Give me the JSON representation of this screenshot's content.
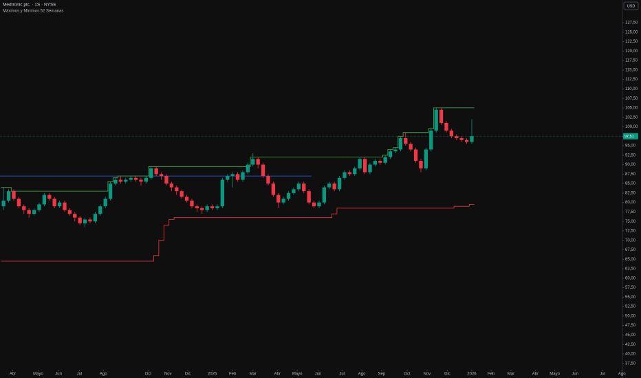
{
  "chart_data": {
    "type": "candlestick",
    "title": "Medtronic plc. · 1S · NYSE",
    "subtitle": "Máximos y Mínimos 52 Semanas",
    "currency": "USD",
    "up_color": "#089981",
    "down_color": "#f23645",
    "x": [
      -2,
      -1,
      0,
      1,
      2,
      3,
      4,
      5,
      6,
      7,
      8,
      9,
      10,
      11,
      12,
      13,
      14,
      15,
      16,
      17,
      18,
      19,
      20,
      21,
      22,
      23,
      24,
      25,
      26,
      27,
      28,
      29,
      30,
      31,
      32,
      33,
      34,
      35,
      36,
      37,
      38,
      39,
      40,
      41,
      42,
      43,
      44,
      45,
      46,
      47,
      48,
      49,
      50,
      51,
      52,
      53,
      54,
      55,
      56,
      57,
      58,
      59,
      60,
      61,
      62,
      63,
      64,
      65,
      66,
      67,
      68,
      69,
      70,
      71,
      72,
      73,
      74,
      75,
      76,
      77,
      78,
      79,
      80,
      81,
      82,
      83,
      84,
      85,
      86,
      87,
      88,
      89,
      90
    ],
    "open": [
      79,
      80.5,
      83,
      81,
      79,
      78,
      77,
      78,
      79.5,
      82,
      81,
      79,
      80,
      78,
      77,
      76,
      74.5,
      75.5,
      75,
      77,
      79,
      81,
      85,
      86,
      85.5,
      86,
      86.5,
      86,
      85.5,
      86.5,
      89,
      87.5,
      87,
      85,
      84,
      83,
      81.5,
      80.5,
      79,
      78.5,
      78,
      79,
      78.5,
      79,
      86,
      87,
      87.5,
      86,
      88,
      90,
      91.5,
      90,
      87,
      85,
      82,
      80,
      81,
      82.5,
      83.5,
      85,
      83,
      80,
      79,
      80,
      84,
      85,
      83.5,
      86.5,
      88,
      87.5,
      89,
      91.5,
      88,
      90,
      91,
      90.5,
      92,
      93.5,
      94,
      97,
      95.5,
      94,
      91,
      89,
      94,
      99,
      104.5,
      101,
      99,
      97.5,
      97,
      96.5,
      96
    ],
    "high": [
      84,
      83.5,
      83.5,
      81.5,
      79.5,
      78.5,
      78.5,
      80,
      82.5,
      82.5,
      81.5,
      80.5,
      80.5,
      78.5,
      77.5,
      76.5,
      76,
      76,
      77.5,
      79.5,
      81.5,
      85.5,
      86.5,
      87,
      86.5,
      87,
      87,
      86.5,
      87,
      89.5,
      89.5,
      88,
      87.5,
      85.5,
      84.5,
      83.5,
      82,
      81,
      79.5,
      79,
      79.5,
      79.5,
      79.5,
      86.5,
      87.5,
      88,
      88,
      88.5,
      90.5,
      93,
      92,
      90.5,
      87.5,
      85.5,
      82.5,
      81.5,
      83,
      84,
      85.5,
      85.5,
      83.5,
      80.5,
      80.5,
      84.5,
      85.5,
      85.5,
      87,
      88.5,
      88.5,
      89.5,
      92,
      92,
      90.5,
      91.5,
      91.5,
      92.5,
      94,
      94.5,
      97.5,
      98.5,
      96,
      94.5,
      91.5,
      94.5,
      99.5,
      105,
      105,
      101.5,
      99.5,
      98,
      97.5,
      97,
      102
    ],
    "low": [
      78,
      80,
      80.5,
      78.5,
      77,
      76,
      76.5,
      77.5,
      79,
      80.5,
      78.5,
      78.5,
      77.5,
      76.5,
      75,
      74,
      73.5,
      74.5,
      74.5,
      76.5,
      78.5,
      80.5,
      84.5,
      85,
      85,
      85.5,
      85.5,
      84.5,
      85,
      86,
      87,
      86,
      84.5,
      83,
      82,
      81,
      80,
      78.5,
      77.5,
      77,
      77.5,
      78,
      78,
      78.5,
      85.5,
      84,
      85.5,
      85.5,
      87.5,
      89.5,
      89,
      86.5,
      84.5,
      81.5,
      78.5,
      79.5,
      80.5,
      82,
      83,
      82.5,
      79.5,
      78.5,
      78.5,
      79.5,
      83.5,
      83,
      83,
      86,
      87,
      87,
      88.5,
      87.5,
      87.5,
      89.5,
      90,
      90,
      91.5,
      93,
      93.5,
      95,
      93.5,
      90.5,
      88,
      88.5,
      93.5,
      98.5,
      100.5,
      98.5,
      97,
      96.5,
      96,
      95.5,
      95.5
    ],
    "close": [
      80.5,
      83,
      81,
      79,
      78,
      77,
      78,
      79.5,
      82,
      81,
      79,
      80,
      78,
      77,
      76,
      74.5,
      75.5,
      75,
      77,
      79,
      81,
      85,
      86,
      85.5,
      86,
      86.5,
      86,
      85.5,
      86.5,
      89,
      87.5,
      87,
      85,
      84,
      83,
      81.5,
      80.5,
      79,
      78.5,
      78,
      79,
      78.5,
      79,
      86,
      87,
      87.5,
      86,
      88,
      90,
      91.5,
      90,
      87,
      85,
      82,
      80,
      81,
      82.5,
      83.5,
      85,
      83,
      80,
      79,
      80,
      84,
      85,
      83.5,
      86.5,
      88,
      87.5,
      89,
      91.5,
      88,
      90,
      91,
      90.5,
      92,
      93.5,
      94,
      97,
      95.5,
      94,
      91,
      89,
      94,
      99,
      104.5,
      101,
      99,
      97.5,
      97,
      96.5,
      96,
      97.51
    ],
    "last_label": "97,51",
    "last_color": "#089981",
    "series": [
      {
        "color": "#4caf50",
        "values": [
          84,
          84,
          83,
          83,
          83,
          83,
          83,
          83,
          83,
          83,
          83,
          83,
          83,
          83,
          83,
          83,
          83,
          83,
          83,
          83,
          83,
          85.5,
          86.5,
          87,
          87,
          87,
          87,
          87,
          87,
          89.5,
          89.5,
          89.5,
          89.5,
          89.5,
          89.5,
          89.5,
          89.5,
          89.5,
          89.5,
          89.5,
          89.5,
          89.5,
          89.5,
          89.5,
          89.5,
          89.5,
          89.5,
          89.5,
          89.5,
          92,
          92,
          92,
          92,
          92,
          92,
          92,
          92,
          92,
          92,
          92,
          92,
          92,
          92,
          92,
          92,
          92,
          92,
          92,
          92,
          92,
          92,
          92,
          92,
          92,
          92,
          92.5,
          94,
          94.5,
          97.5,
          98.5,
          98.5,
          98.5,
          98.5,
          98.5,
          99.5,
          105,
          105,
          105,
          105,
          105,
          105,
          105,
          105
        ]
      },
      {
        "color": "#f23645",
        "values": [
          64.5,
          64.5,
          64.5,
          64.5,
          64.5,
          64.5,
          64.5,
          64.5,
          64.5,
          64.5,
          64.5,
          64.5,
          64.5,
          64.5,
          64.5,
          64.5,
          64.5,
          64.5,
          64.5,
          64.5,
          64.5,
          64.5,
          64.5,
          64.5,
          64.5,
          64.5,
          64.5,
          64.5,
          64.5,
          64.5,
          66,
          70,
          74,
          75.5,
          76,
          76,
          76,
          76,
          76,
          76,
          76,
          76,
          76,
          76,
          76,
          76,
          76,
          76,
          76,
          76,
          76,
          76,
          76,
          76,
          76,
          76,
          76,
          76,
          76,
          76,
          76,
          76,
          76,
          76,
          76,
          77,
          78.5,
          78.5,
          78.5,
          78.5,
          78.5,
          78.5,
          78.5,
          78.5,
          78.5,
          78.5,
          78.5,
          78.5,
          78.5,
          78.5,
          78.5,
          78.5,
          78.5,
          78.5,
          78.5,
          78.5,
          78.5,
          78.5,
          78.5,
          79,
          79,
          79,
          79.5
        ]
      }
    ],
    "hline": {
      "value": 87,
      "x": [
        -2.7,
        58.5
      ],
      "color": "#2962ff"
    },
    "xlim": [
      -2.7,
      119.6
    ],
    "ylim": [
      36,
      129.5
    ],
    "xticks": [
      {
        "value": -0.2,
        "label": "Abr"
      },
      {
        "value": 4.8,
        "label": "Mayo"
      },
      {
        "value": 8.8,
        "label": "Jun"
      },
      {
        "value": 12.9,
        "label": "Jul"
      },
      {
        "value": 17.6,
        "label": "Ago"
      },
      {
        "value": 26.4,
        "label": "Oct"
      },
      {
        "value": 30.3,
        "label": "Nov"
      },
      {
        "value": 34.2,
        "label": "Dic"
      },
      {
        "value": 39.0,
        "label": "2025"
      },
      {
        "value": 43.0,
        "label": "Feb"
      },
      {
        "value": 47.0,
        "label": "Mar"
      },
      {
        "value": 51.8,
        "label": "Abr"
      },
      {
        "value": 55.7,
        "label": "Mayo"
      },
      {
        "value": 59.8,
        "label": "Jun"
      },
      {
        "value": 64.5,
        "label": "Jul"
      },
      {
        "value": 68.4,
        "label": "Ago"
      },
      {
        "value": 72.3,
        "label": "Sep"
      },
      {
        "value": 77.3,
        "label": "Oct"
      },
      {
        "value": 81.2,
        "label": "Nov"
      },
      {
        "value": 85.2,
        "label": "Dic"
      },
      {
        "value": 90.0,
        "label": "2026"
      },
      {
        "value": 93.8,
        "label": "Feb"
      },
      {
        "value": 97.7,
        "label": "Mar"
      },
      {
        "value": 102.5,
        "label": "Abr"
      },
      {
        "value": 106.3,
        "label": "Mayo"
      },
      {
        "value": 110.3,
        "label": "Jun"
      },
      {
        "value": 115.7,
        "label": "Jul"
      },
      {
        "value": 119.5,
        "label": "Ago"
      }
    ],
    "yticks": [
      {
        "value": 37.5,
        "label": "37,50"
      },
      {
        "value": 40,
        "label": "40,00"
      },
      {
        "value": 42.5,
        "label": "42,50"
      },
      {
        "value": 45,
        "label": "45,00"
      },
      {
        "value": 47.5,
        "label": "47,50"
      },
      {
        "value": 50,
        "label": "50,00"
      },
      {
        "value": 52.5,
        "label": "52,50"
      },
      {
        "value": 55,
        "label": "55,00"
      },
      {
        "value": 57.5,
        "label": "57,50"
      },
      {
        "value": 60,
        "label": "60,00"
      },
      {
        "value": 62.5,
        "label": "62,50"
      },
      {
        "value": 65,
        "label": "65,00"
      },
      {
        "value": 67.5,
        "label": "67,50"
      },
      {
        "value": 70,
        "label": "70,00"
      },
      {
        "value": 72.5,
        "label": "72,50"
      },
      {
        "value": 75,
        "label": "75,00"
      },
      {
        "value": 77.5,
        "label": "77,50"
      },
      {
        "value": 80,
        "label": "80,00"
      },
      {
        "value": 82.5,
        "label": "82,50"
      },
      {
        "value": 85,
        "label": "85,00"
      },
      {
        "value": 87.5,
        "label": "87,50"
      },
      {
        "value": 90,
        "label": "90,00"
      },
      {
        "value": 92.5,
        "label": "92,50"
      },
      {
        "value": 95,
        "label": "95,00"
      },
      {
        "value": 97.5,
        "label": "97,50"
      },
      {
        "value": 100,
        "label": "100,00"
      },
      {
        "value": 102.5,
        "label": "102,50"
      },
      {
        "value": 105,
        "label": "105,00"
      },
      {
        "value": 107.5,
        "label": "107,50"
      },
      {
        "value": 110,
        "label": "110,00"
      },
      {
        "value": 112.5,
        "label": "112,50"
      },
      {
        "value": 115,
        "label": "115,00"
      },
      {
        "value": 117.5,
        "label": "117,50"
      },
      {
        "value": 120,
        "label": "120,00"
      },
      {
        "value": 122.5,
        "label": "122,50"
      },
      {
        "value": 125,
        "label": "125,00"
      },
      {
        "value": 127.5,
        "label": "127,50"
      }
    ]
  }
}
